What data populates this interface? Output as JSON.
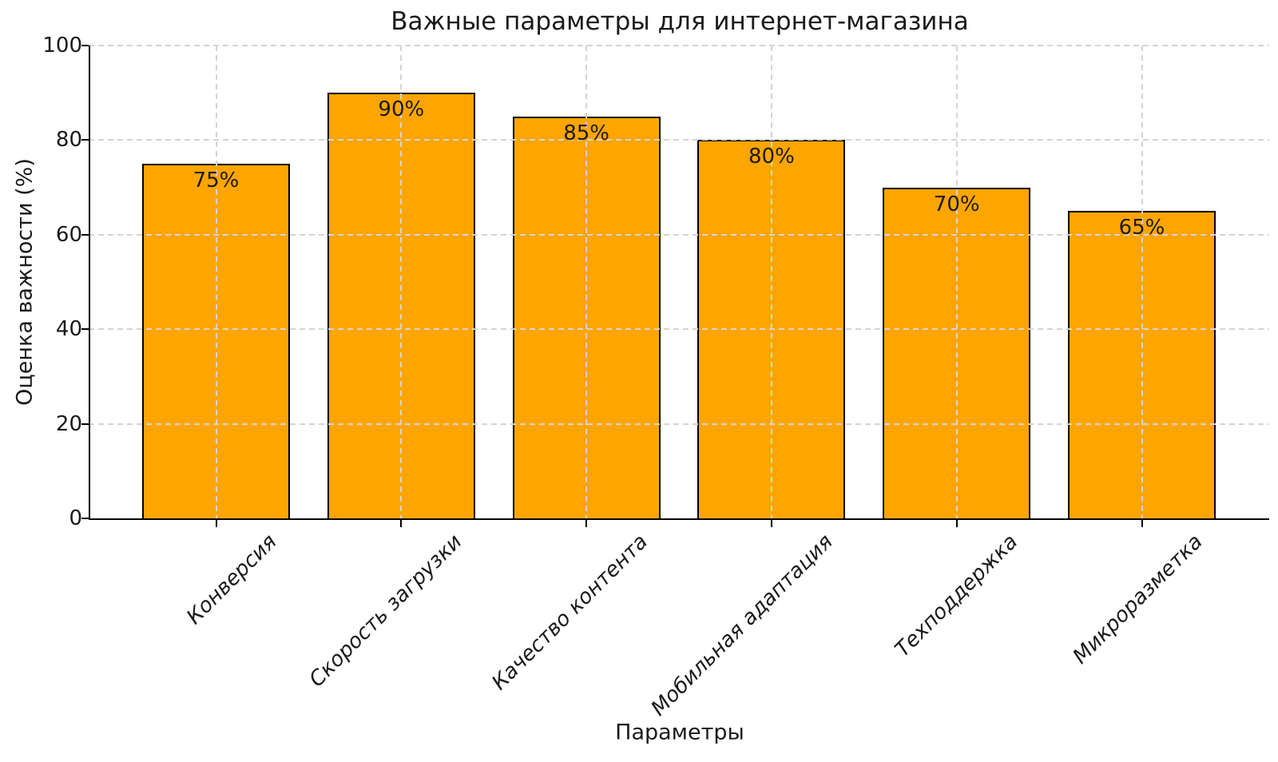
{
  "chart_data": {
    "type": "bar",
    "title": "Важные параметры для интернет-магазина",
    "xlabel": "Параметры",
    "ylabel": "Оценка важности (%)",
    "categories": [
      "Конверсия",
      "Скорость загрузки",
      "Качество контента",
      "Мобильная адаптация",
      "Техподдержка",
      "Микроразметка"
    ],
    "values": [
      75,
      90,
      85,
      80,
      70,
      65
    ],
    "bar_labels": [
      "75%",
      "90%",
      "85%",
      "80%",
      "70%",
      "65%"
    ],
    "ylim": [
      0,
      100
    ],
    "yticks": [
      0,
      20,
      40,
      60,
      80,
      100
    ],
    "ytick_labels": [
      "0",
      "20",
      "40",
      "60",
      "80",
      "100"
    ],
    "grid": "dashed, horizontal and vertical, drawn above bars",
    "legend": "none",
    "colors": {
      "bar_fill": "#FFA500",
      "bar_edge": "#000000",
      "grid": "#d4d4d4",
      "axis": "#000000",
      "text": "#1a1a1a",
      "background": "#ffffff"
    }
  }
}
